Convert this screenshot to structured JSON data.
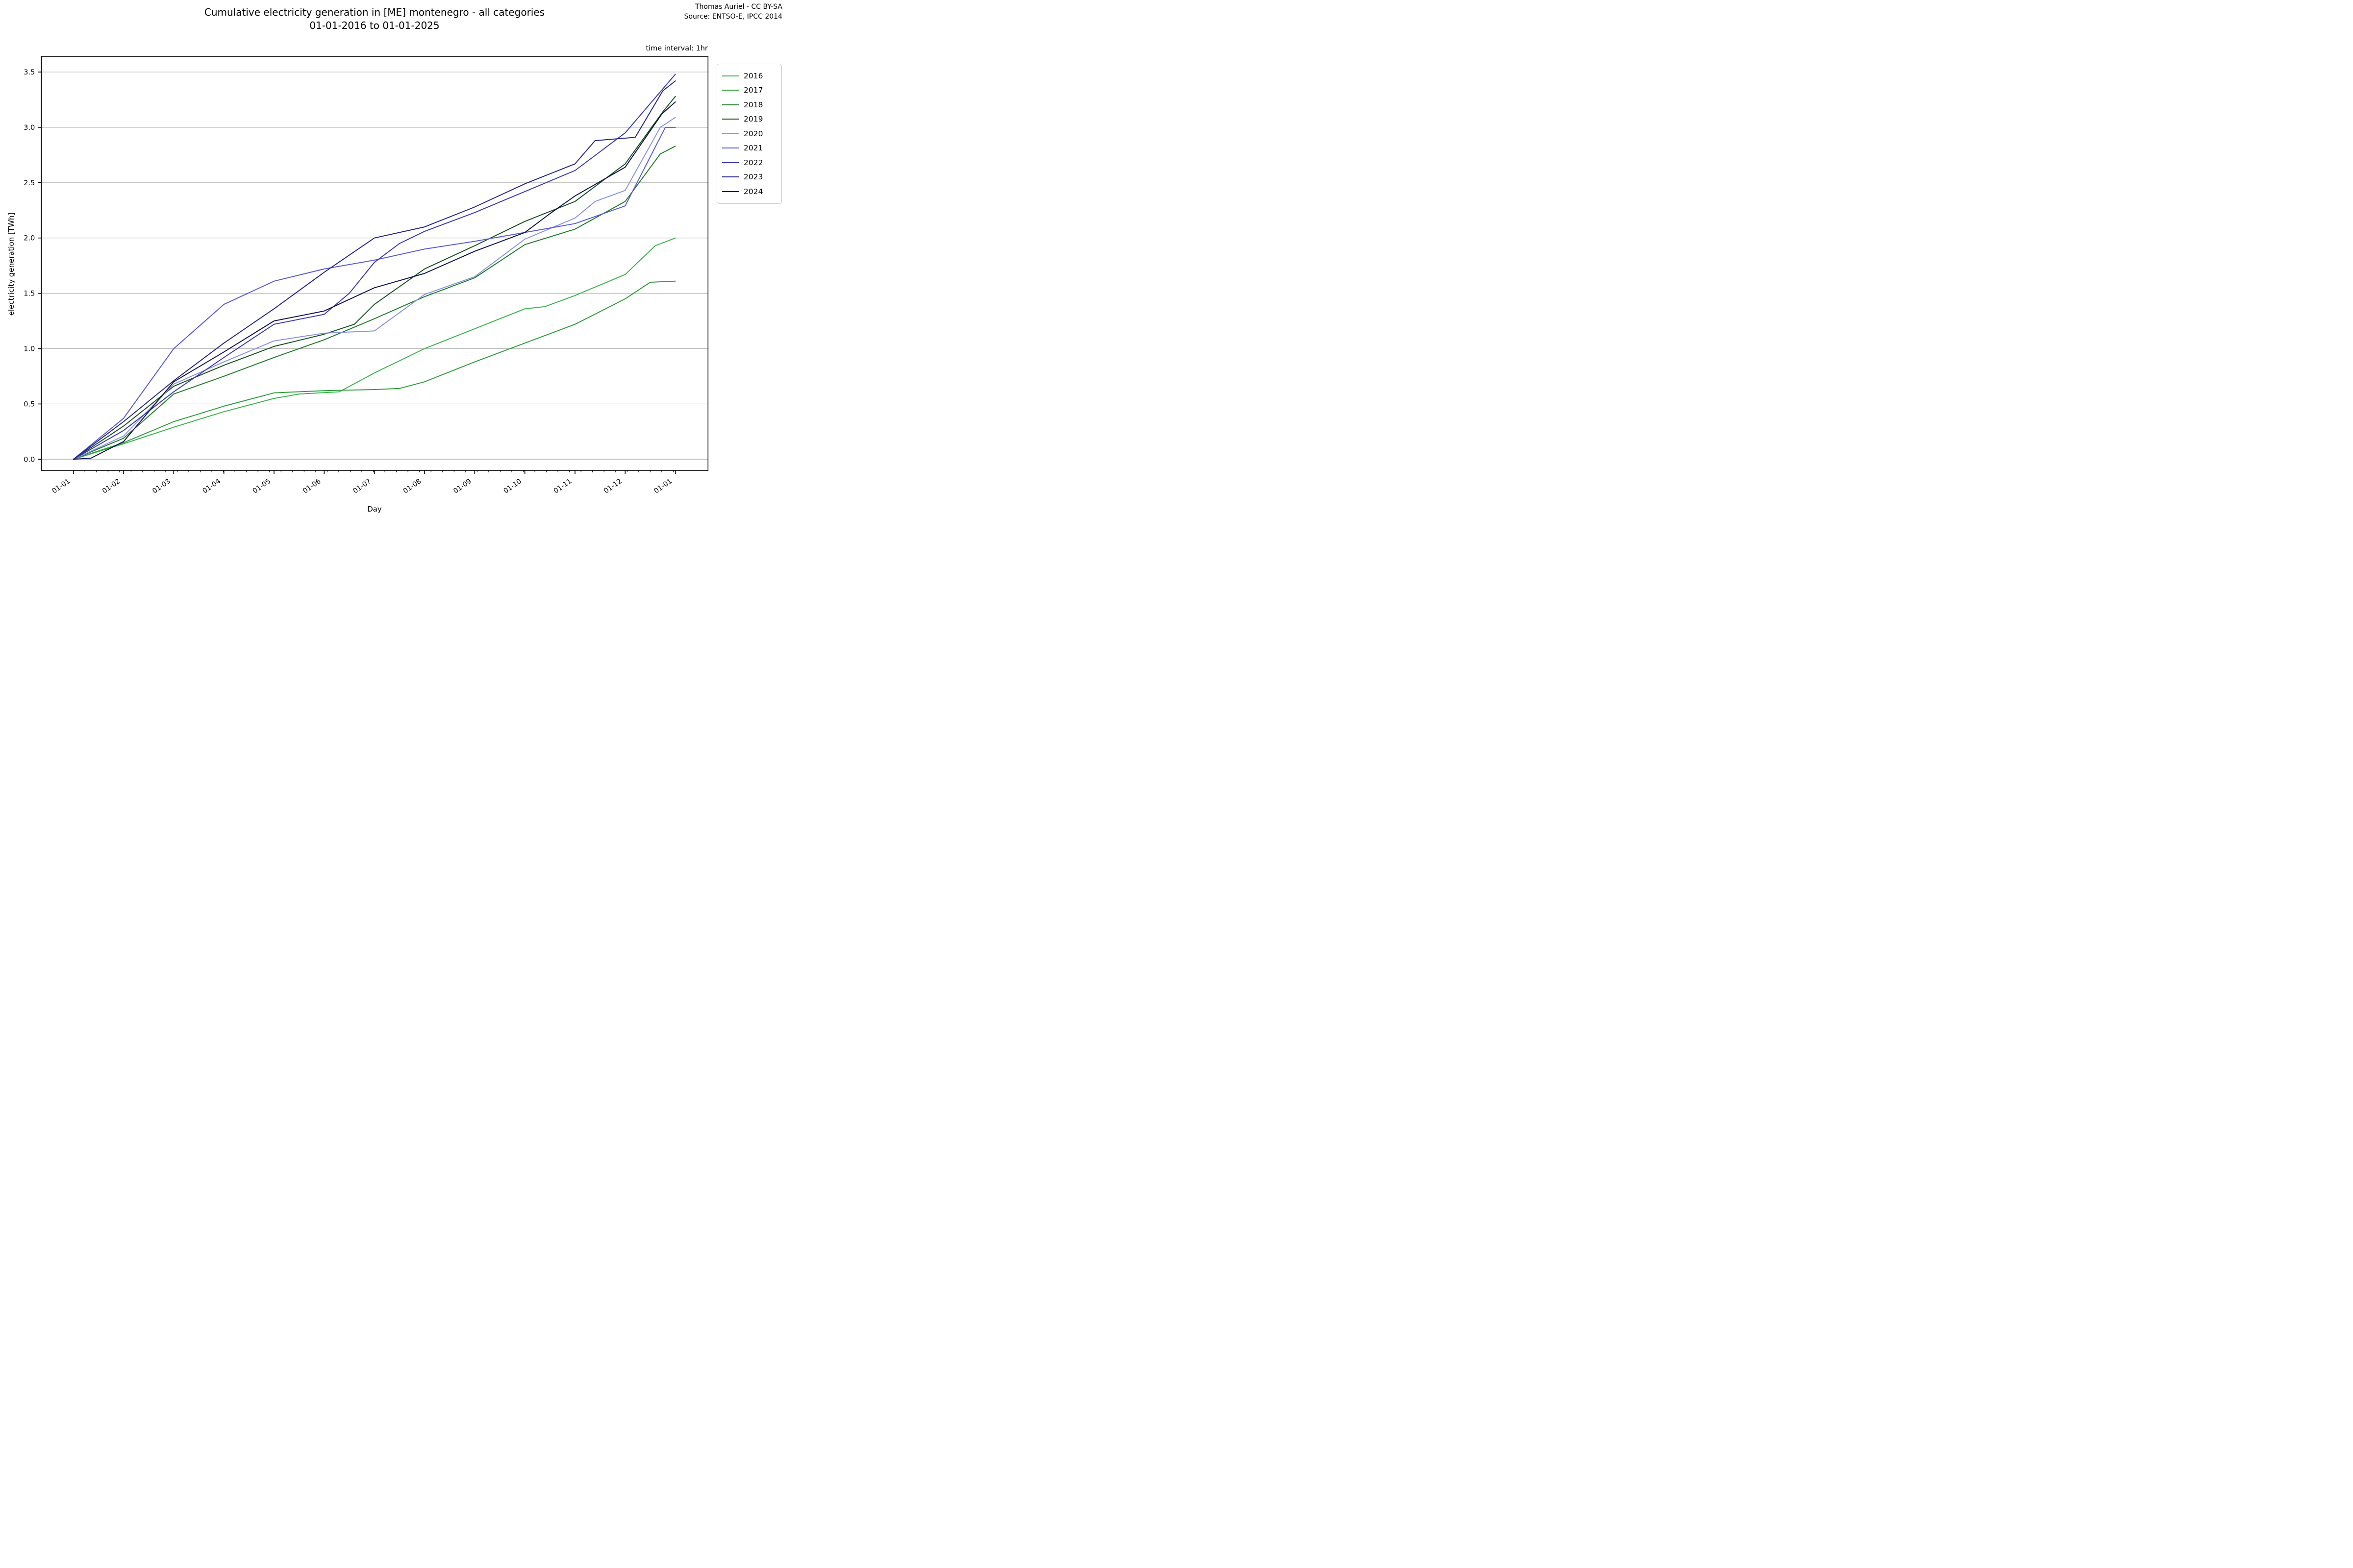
{
  "header": {
    "title_line1": "Cumulative electricity generation in [ME] montenegro - all categories",
    "title_line2": "01-01-2016 to 01-01-2025",
    "attribution_line1": "Thomas Auriel - CC BY-SA",
    "attribution_line2": "Source: ENTSO-E, IPCC 2014",
    "time_interval_note": "time interval: 1hr"
  },
  "chart_data": {
    "type": "line",
    "title": "Cumulative electricity generation in [ME] montenegro - all categories 01-01-2016 to 01-01-2025",
    "xlabel": "Day",
    "ylabel": "electricity generation [TWh]",
    "grid": true,
    "grid_color": "#b0b0b0",
    "spine_color": "#000000",
    "legend_position": "right",
    "x_unit": "months since 01-01",
    "xlim": [
      -0.64,
      12.65
    ],
    "ylim": [
      -0.1,
      3.65
    ],
    "x_tick_labels": [
      "01-01",
      "01-02",
      "01-03",
      "01-04",
      "01-05",
      "01-06",
      "01-07",
      "01-08",
      "01-09",
      "01-10",
      "01-11",
      "01-12",
      "01-01"
    ],
    "x_tick_months": [
      0,
      1,
      2,
      3,
      4,
      5,
      6,
      7,
      8,
      9,
      10,
      11,
      12
    ],
    "y_ticks": [
      "0.0",
      "0.5",
      "1.0",
      "1.5",
      "2.0",
      "2.5",
      "3.0",
      "3.5"
    ],
    "y_tick_values": [
      0.0,
      0.5,
      1.0,
      1.5,
      2.0,
      2.5,
      3.0,
      3.5
    ],
    "series": [
      {
        "name": "2016",
        "color": "#3cb44b",
        "final_value_twh": 2.0,
        "points": [
          [
            0,
            0
          ],
          [
            1,
            0.14
          ],
          [
            2,
            0.29
          ],
          [
            3,
            0.43
          ],
          [
            4,
            0.55
          ],
          [
            4.5,
            0.59
          ],
          [
            5.3,
            0.61
          ],
          [
            6,
            0.78
          ],
          [
            7,
            1.0
          ],
          [
            8,
            1.18
          ],
          [
            9,
            1.36
          ],
          [
            9.4,
            1.38
          ],
          [
            10,
            1.48
          ],
          [
            11,
            1.67
          ],
          [
            11.6,
            1.93
          ],
          [
            12,
            2.0
          ]
        ]
      },
      {
        "name": "2017",
        "color": "#2f9e3c",
        "final_value_twh": 1.61,
        "points": [
          [
            0,
            0
          ],
          [
            1,
            0.15
          ],
          [
            2,
            0.34
          ],
          [
            3,
            0.48
          ],
          [
            4,
            0.6
          ],
          [
            5,
            0.62
          ],
          [
            6,
            0.63
          ],
          [
            6.5,
            0.64
          ],
          [
            7,
            0.7
          ],
          [
            8,
            0.88
          ],
          [
            9,
            1.05
          ],
          [
            10,
            1.22
          ],
          [
            11,
            1.45
          ],
          [
            11.5,
            1.6
          ],
          [
            12,
            1.61
          ]
        ]
      },
      {
        "name": "2018",
        "color": "#1e7e2a",
        "final_value_twh": 2.83,
        "points": [
          [
            0,
            0
          ],
          [
            1,
            0.19
          ],
          [
            2,
            0.59
          ],
          [
            3,
            0.75
          ],
          [
            4,
            0.92
          ],
          [
            5,
            1.08
          ],
          [
            6,
            1.27
          ],
          [
            7,
            1.47
          ],
          [
            8,
            1.64
          ],
          [
            9,
            1.94
          ],
          [
            10,
            2.08
          ],
          [
            11,
            2.33
          ],
          [
            11.7,
            2.76
          ],
          [
            12,
            2.83
          ]
        ]
      },
      {
        "name": "2019",
        "color": "#15521d",
        "final_value_twh": 3.28,
        "points": [
          [
            0,
            0
          ],
          [
            1,
            0.3
          ],
          [
            2,
            0.66
          ],
          [
            3,
            0.85
          ],
          [
            4,
            1.02
          ],
          [
            5,
            1.13
          ],
          [
            5.6,
            1.22
          ],
          [
            6,
            1.4
          ],
          [
            7,
            1.72
          ],
          [
            8,
            1.93
          ],
          [
            9,
            2.15
          ],
          [
            10,
            2.33
          ],
          [
            11,
            2.67
          ],
          [
            11.75,
            3.14
          ],
          [
            12,
            3.28
          ]
        ]
      },
      {
        "name": "2020",
        "color": "#8b93de",
        "final_value_twh": 3.09,
        "points": [
          [
            0,
            0
          ],
          [
            1,
            0.21
          ],
          [
            2,
            0.68
          ],
          [
            3,
            0.88
          ],
          [
            4,
            1.07
          ],
          [
            5,
            1.14
          ],
          [
            6,
            1.16
          ],
          [
            7,
            1.49
          ],
          [
            8,
            1.65
          ],
          [
            9,
            1.99
          ],
          [
            10,
            2.18
          ],
          [
            10.4,
            2.33
          ],
          [
            11,
            2.43
          ],
          [
            11.7,
            3.0
          ],
          [
            12,
            3.09
          ]
        ]
      },
      {
        "name": "2021",
        "color": "#5a5ad9",
        "final_value_twh": 3.0,
        "points": [
          [
            0,
            0
          ],
          [
            1,
            0.37
          ],
          [
            2,
            1.0
          ],
          [
            3,
            1.4
          ],
          [
            4,
            1.61
          ],
          [
            5,
            1.72
          ],
          [
            6,
            1.8
          ],
          [
            7,
            1.9
          ],
          [
            8,
            1.97
          ],
          [
            9,
            2.05
          ],
          [
            10,
            2.13
          ],
          [
            11,
            2.29
          ],
          [
            11.8,
            3.0
          ],
          [
            12,
            3.0
          ]
        ]
      },
      {
        "name": "2022",
        "color": "#3939b3",
        "final_value_twh": 3.48,
        "points": [
          [
            0,
            0
          ],
          [
            1,
            0.26
          ],
          [
            2,
            0.61
          ],
          [
            3,
            0.92
          ],
          [
            4,
            1.22
          ],
          [
            5,
            1.31
          ],
          [
            5.5,
            1.5
          ],
          [
            6,
            1.78
          ],
          [
            6.5,
            1.95
          ],
          [
            7,
            2.06
          ],
          [
            8,
            2.23
          ],
          [
            9,
            2.42
          ],
          [
            10,
            2.61
          ],
          [
            11,
            2.95
          ],
          [
            12,
            3.48
          ]
        ]
      },
      {
        "name": "2023",
        "color": "#24248c",
        "final_value_twh": 3.42,
        "points": [
          [
            0,
            0
          ],
          [
            1,
            0.34
          ],
          [
            2,
            0.71
          ],
          [
            3,
            1.05
          ],
          [
            4,
            1.36
          ],
          [
            5,
            1.69
          ],
          [
            6,
            2.0
          ],
          [
            7,
            2.1
          ],
          [
            8,
            2.28
          ],
          [
            9,
            2.49
          ],
          [
            10,
            2.67
          ],
          [
            10.4,
            2.88
          ],
          [
            11.2,
            2.91
          ],
          [
            11.75,
            3.33
          ],
          [
            12,
            3.42
          ]
        ]
      },
      {
        "name": "2024",
        "color": "#12124d",
        "final_value_twh": 3.23,
        "points": [
          [
            0,
            0
          ],
          [
            0.35,
            0.01
          ],
          [
            1,
            0.16
          ],
          [
            2,
            0.7
          ],
          [
            3,
            0.97
          ],
          [
            4,
            1.25
          ],
          [
            5,
            1.34
          ],
          [
            6,
            1.55
          ],
          [
            7,
            1.68
          ],
          [
            8,
            1.88
          ],
          [
            9,
            2.05
          ],
          [
            9.5,
            2.22
          ],
          [
            10,
            2.38
          ],
          [
            11,
            2.64
          ],
          [
            11.73,
            3.12
          ],
          [
            12,
            3.23
          ]
        ]
      }
    ]
  }
}
